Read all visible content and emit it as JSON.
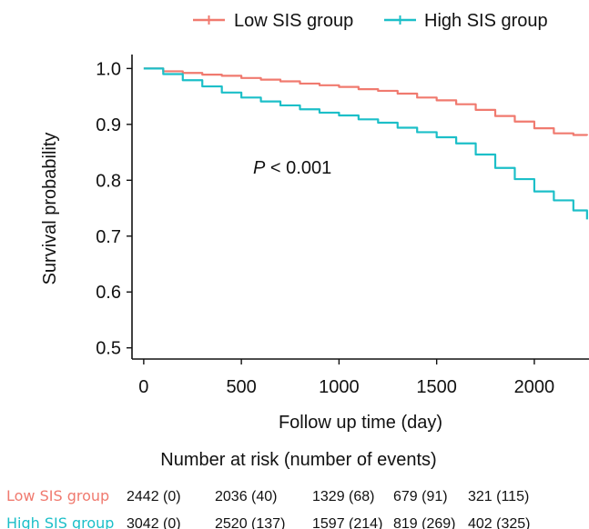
{
  "chart_data": {
    "type": "line",
    "xlabel": "Follow up time (day)",
    "ylabel": "Survival probability",
    "xlim": [
      -60,
      2280
    ],
    "ylim": [
      0.48,
      1.025
    ],
    "x_ticks": [
      0,
      500,
      1000,
      1500,
      2000
    ],
    "x_tick_labels": [
      "0",
      "500",
      "1000",
      "1500",
      "2000"
    ],
    "y_ticks": [
      0.5,
      0.6,
      0.7,
      0.8,
      0.9,
      1.0
    ],
    "y_tick_labels": [
      "0.5",
      "0.6",
      "0.7",
      "0.8",
      "0.9",
      "1.0"
    ],
    "grid": false,
    "legend_position": "top-right",
    "annotation": {
      "italic": "P",
      "text": " < 0.001",
      "x": 560,
      "y": 0.823
    },
    "series": [
      {
        "name": "Low SIS group",
        "color": "#F07A6F",
        "points": [
          [
            0,
            1.0
          ],
          [
            100,
            0.995
          ],
          [
            200,
            0.992
          ],
          [
            300,
            0.989
          ],
          [
            400,
            0.987
          ],
          [
            500,
            0.983
          ],
          [
            600,
            0.98
          ],
          [
            700,
            0.977
          ],
          [
            800,
            0.973
          ],
          [
            900,
            0.97
          ],
          [
            1000,
            0.967
          ],
          [
            1100,
            0.963
          ],
          [
            1200,
            0.96
          ],
          [
            1300,
            0.955
          ],
          [
            1400,
            0.948
          ],
          [
            1500,
            0.943
          ],
          [
            1600,
            0.936
          ],
          [
            1700,
            0.926
          ],
          [
            1800,
            0.915
          ],
          [
            1900,
            0.905
          ],
          [
            2000,
            0.893
          ],
          [
            2100,
            0.884
          ],
          [
            2200,
            0.881
          ],
          [
            2270,
            0.88
          ]
        ]
      },
      {
        "name": "High SIS group",
        "color": "#1CBFC8",
        "points": [
          [
            0,
            1.0
          ],
          [
            100,
            0.99
          ],
          [
            200,
            0.979
          ],
          [
            300,
            0.968
          ],
          [
            400,
            0.957
          ],
          [
            500,
            0.948
          ],
          [
            600,
            0.941
          ],
          [
            700,
            0.934
          ],
          [
            800,
            0.927
          ],
          [
            900,
            0.921
          ],
          [
            1000,
            0.916
          ],
          [
            1100,
            0.909
          ],
          [
            1200,
            0.903
          ],
          [
            1300,
            0.894
          ],
          [
            1400,
            0.886
          ],
          [
            1500,
            0.877
          ],
          [
            1600,
            0.866
          ],
          [
            1700,
            0.846
          ],
          [
            1800,
            0.822
          ],
          [
            1900,
            0.802
          ],
          [
            2000,
            0.78
          ],
          [
            2100,
            0.764
          ],
          [
            2200,
            0.746
          ],
          [
            2270,
            0.73
          ]
        ]
      }
    ],
    "risk_table": {
      "title": "Number at risk (number of events)",
      "rows": [
        {
          "label": "Low SIS group",
          "color": "#F07A6F",
          "values": [
            "2442 (0)",
            "2036 (40)",
            "1329 (68)",
            "679 (91)",
            "321 (115)"
          ]
        },
        {
          "label": "High SIS group",
          "color": "#1CBFC8",
          "values": [
            "3042 (0)",
            "2520 (137)",
            "1597 (214)",
            "819 (269)",
            "402 (325)"
          ]
        }
      ]
    }
  }
}
